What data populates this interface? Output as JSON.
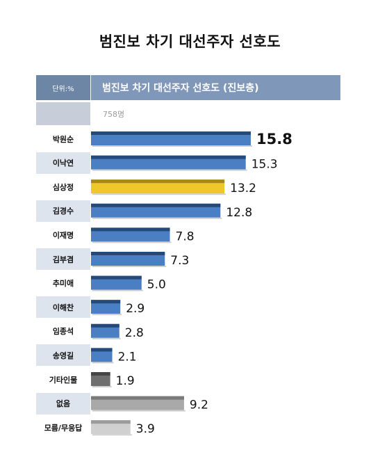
{
  "title": "범진보 차기 대선주자 선호도",
  "table_header": {
    "unit": "단위:%",
    "column": "범진보 차기 대선주자 선호도 (진보층)",
    "sample": "758명"
  },
  "chart_data": {
    "type": "bar",
    "orientation": "horizontal",
    "title": "범진보 차기 대선주자 선호도",
    "series_label": "범진보 차기 대선주자 선호도 (진보층)",
    "unit": "단위:%",
    "sample_size": "758명",
    "categories": [
      "박원순",
      "이낙연",
      "심상정",
      "김경수",
      "이재명",
      "김부겸",
      "추미애",
      "이해찬",
      "임종석",
      "송영길",
      "기타인물",
      "없음",
      "모름/무응답"
    ],
    "values": [
      15.8,
      15.3,
      13.2,
      12.8,
      7.8,
      7.3,
      5.0,
      2.9,
      2.8,
      2.1,
      1.9,
      9.2,
      3.9
    ],
    "value_labels": [
      "15.8",
      "15.3",
      "13.2",
      "12.8",
      "7.8",
      "7.3",
      "5.0",
      "2.9",
      "2.8",
      "2.1",
      "1.9",
      "9.2",
      "3.9"
    ],
    "bar_colors": [
      "#4a7fc4",
      "#4a7fc4",
      "#eec82a",
      "#4a7fc4",
      "#4a7fc4",
      "#4a7fc4",
      "#4a7fc4",
      "#4a7fc4",
      "#4a7fc4",
      "#4a7fc4",
      "#6e6e6e",
      "#a9a9a9",
      "#d0d0d0"
    ],
    "bar_top_colors": [
      "#254a7a",
      "#254a7a",
      "#a8861a",
      "#254a7a",
      "#254a7a",
      "#254a7a",
      "#254a7a",
      "#254a7a",
      "#254a7a",
      "#254a7a",
      "#454545",
      "#7a7a7a",
      "#9b9b9b"
    ],
    "xlim": [
      0,
      15.8
    ],
    "grid": false,
    "legend": "none"
  }
}
